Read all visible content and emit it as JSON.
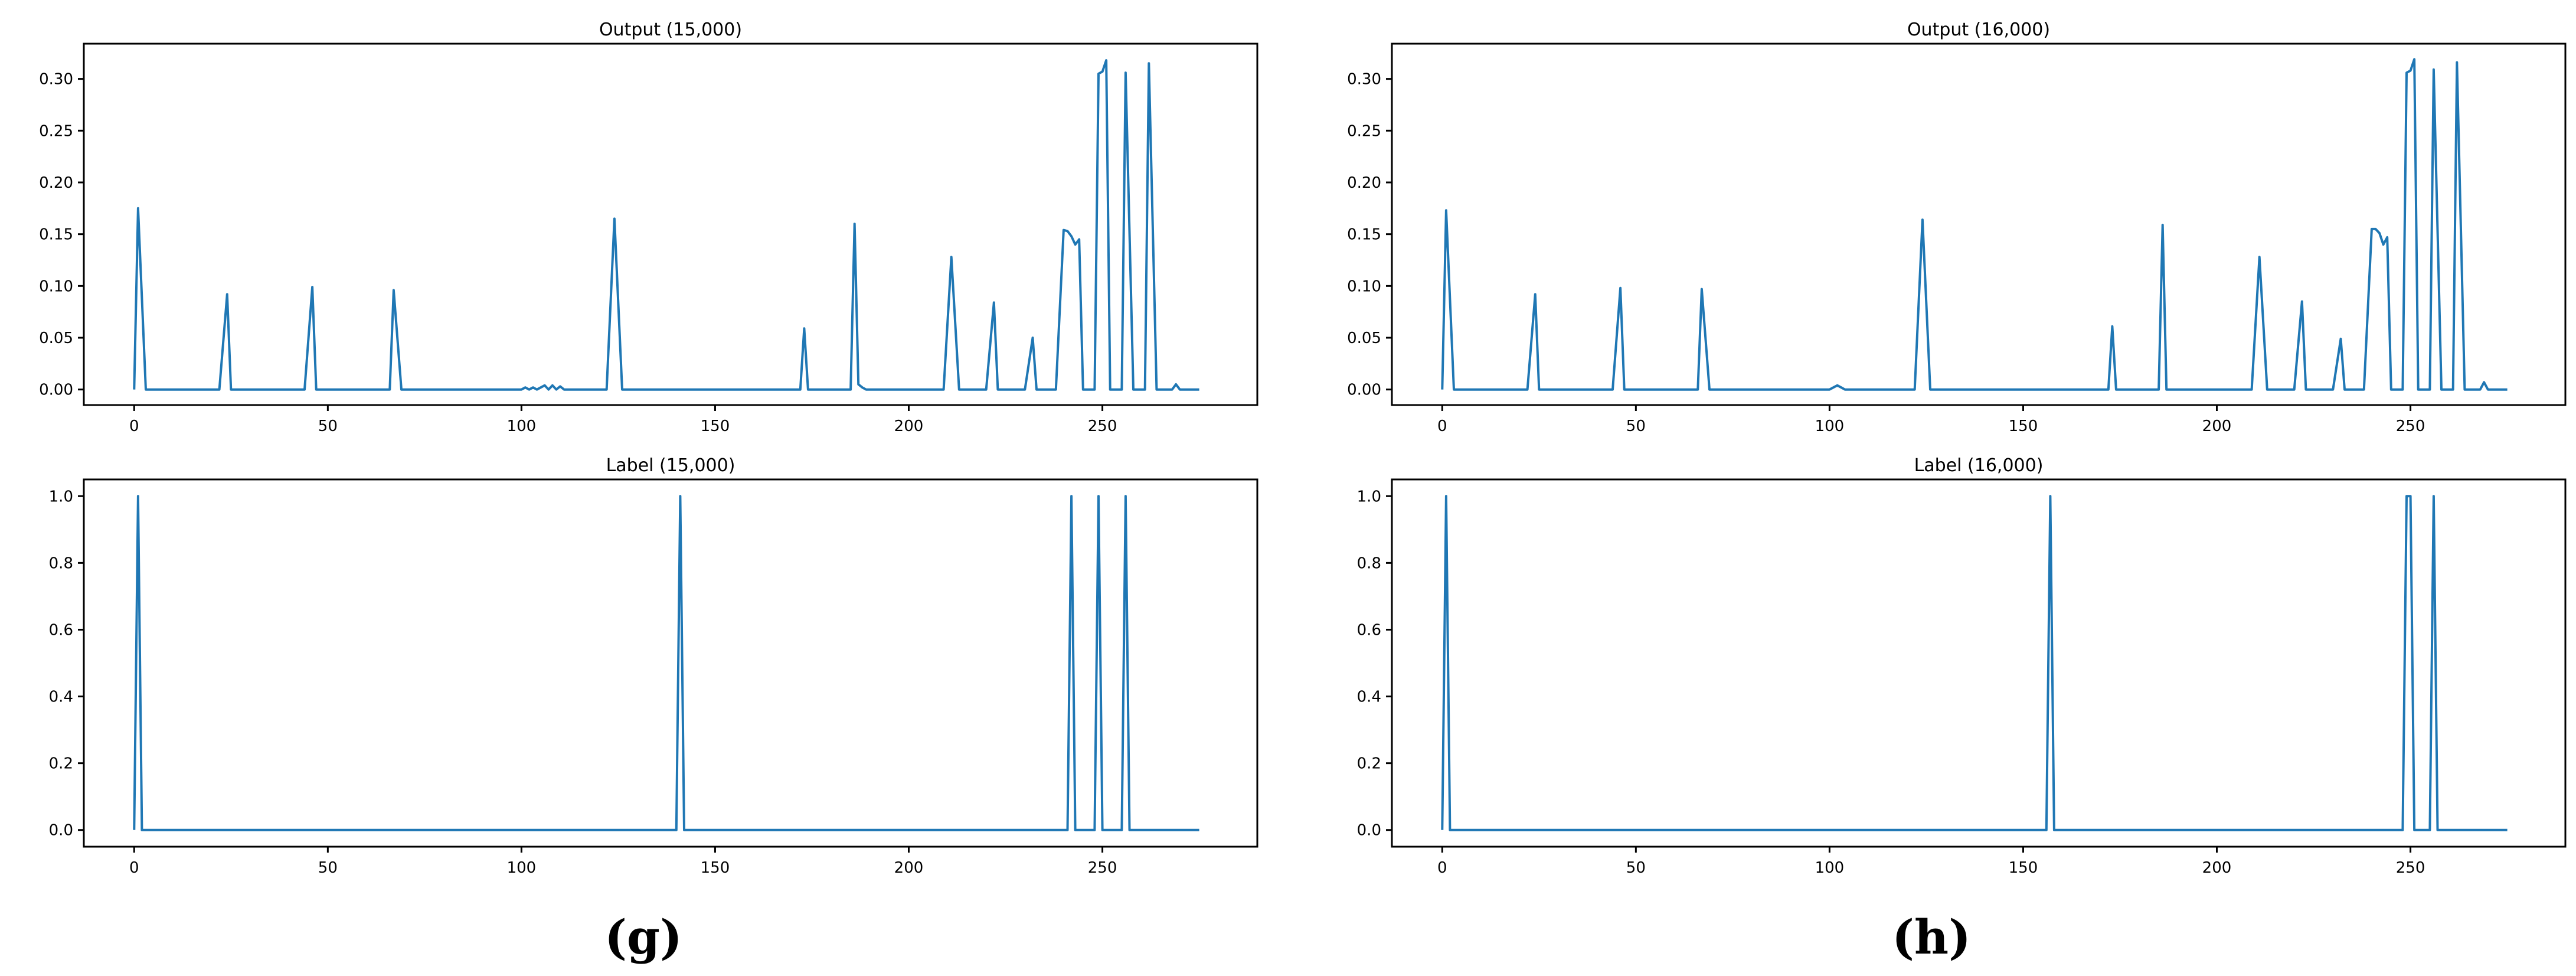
{
  "colors": {
    "series": "#1f77b4",
    "axis": "#000000",
    "background": "#ffffff"
  },
  "captions": {
    "left": "(g)",
    "right": "(h)"
  },
  "chart_data": [
    {
      "id": "output-15000",
      "type": "line",
      "title": "Output (15,000)",
      "xlabel": "",
      "ylabel": "",
      "xlim": [
        -13,
        290
      ],
      "ylim": [
        -0.015,
        0.334
      ],
      "xticks": [
        0,
        50,
        100,
        150,
        200,
        250
      ],
      "yticks": [
        0.0,
        0.05,
        0.1,
        0.15,
        0.2,
        0.25,
        0.3
      ],
      "ytick_labels": [
        "0.00",
        "0.05",
        "0.10",
        "0.15",
        "0.20",
        "0.25",
        "0.30"
      ],
      "grid": false,
      "series": [
        {
          "x": [
            0,
            1,
            3,
            22,
            24,
            25,
            44,
            46,
            47,
            66,
            67,
            69,
            100,
            101,
            102,
            103,
            104,
            105,
            106,
            107,
            108,
            109,
            110,
            111,
            112,
            122,
            124,
            126,
            172,
            173,
            174,
            185,
            186,
            187,
            188,
            189,
            190,
            209,
            211,
            213,
            220,
            222,
            223,
            230,
            232,
            233,
            238,
            240,
            241,
            242,
            243,
            244,
            245,
            246,
            248,
            249,
            250,
            251,
            252,
            254,
            255,
            256,
            258,
            260,
            261,
            262,
            264,
            266,
            268,
            269,
            270,
            271,
            272,
            273,
            274,
            275
          ],
          "y": [
            0.0,
            0.175,
            0.0,
            0.0,
            0.092,
            0.0,
            0.0,
            0.099,
            0.0,
            0.0,
            0.096,
            0.0,
            0.0,
            0.002,
            0.0,
            0.002,
            0.0,
            0.002,
            0.004,
            0.0,
            0.004,
            0.0,
            0.003,
            0.0,
            0.0,
            0.0,
            0.165,
            0.0,
            0.0,
            0.059,
            0.0,
            0.0,
            0.16,
            0.005,
            0.002,
            0.0,
            0.0,
            0.0,
            0.128,
            0.0,
            0.0,
            0.084,
            0.0,
            0.0,
            0.05,
            0.0,
            0.0,
            0.154,
            0.153,
            0.148,
            0.14,
            0.145,
            0.0,
            0.0,
            0.0,
            0.305,
            0.307,
            0.318,
            0.0,
            0.0,
            0.0,
            0.306,
            0.0,
            0.0,
            0.0,
            0.315,
            0.0,
            0.0,
            0.0,
            0.005,
            0.0,
            0.0,
            0.0,
            0.0,
            0.0,
            0.0
          ]
        }
      ]
    },
    {
      "id": "output-16000",
      "type": "line",
      "title": "Output (16,000)",
      "xlabel": "",
      "ylabel": "",
      "xlim": [
        -13,
        290
      ],
      "ylim": [
        -0.015,
        0.334
      ],
      "xticks": [
        0,
        50,
        100,
        150,
        200,
        250
      ],
      "yticks": [
        0.0,
        0.05,
        0.1,
        0.15,
        0.2,
        0.25,
        0.3
      ],
      "ytick_labels": [
        "0.00",
        "0.05",
        "0.10",
        "0.15",
        "0.20",
        "0.25",
        "0.30"
      ],
      "grid": false,
      "series": [
        {
          "x": [
            0,
            1,
            3,
            22,
            24,
            25,
            44,
            46,
            47,
            66,
            67,
            69,
            100,
            101,
            102,
            103,
            104,
            122,
            124,
            126,
            172,
            173,
            174,
            185,
            186,
            187,
            209,
            211,
            213,
            220,
            222,
            223,
            230,
            232,
            233,
            238,
            240,
            241,
            242,
            243,
            244,
            245,
            246,
            248,
            249,
            250,
            251,
            252,
            254,
            255,
            256,
            258,
            260,
            261,
            262,
            264,
            266,
            268,
            269,
            270,
            271,
            273,
            275
          ],
          "y": [
            0.0,
            0.173,
            0.0,
            0.0,
            0.092,
            0.0,
            0.0,
            0.098,
            0.0,
            0.0,
            0.097,
            0.0,
            0.0,
            0.002,
            0.004,
            0.002,
            0.0,
            0.0,
            0.164,
            0.0,
            0.0,
            0.061,
            0.0,
            0.0,
            0.159,
            0.0,
            0.0,
            0.128,
            0.0,
            0.0,
            0.085,
            0.0,
            0.0,
            0.049,
            0.0,
            0.0,
            0.155,
            0.155,
            0.151,
            0.14,
            0.147,
            0.0,
            0.0,
            0.0,
            0.306,
            0.308,
            0.319,
            0.0,
            0.0,
            0.0,
            0.309,
            0.0,
            0.0,
            0.0,
            0.316,
            0.0,
            0.0,
            0.0,
            0.007,
            0.0,
            0.0,
            0.0,
            0.0
          ]
        }
      ]
    },
    {
      "id": "label-15000",
      "type": "line",
      "title": "Label (15,000)",
      "xlabel": "",
      "ylabel": "",
      "xlim": [
        -13,
        290
      ],
      "ylim": [
        -0.05,
        1.05
      ],
      "xticks": [
        0,
        50,
        100,
        150,
        200,
        250
      ],
      "yticks": [
        0.0,
        0.2,
        0.4,
        0.6,
        0.8,
        1.0
      ],
      "ytick_labels": [
        "0.0",
        "0.2",
        "0.4",
        "0.6",
        "0.8",
        "1.0"
      ],
      "grid": false,
      "series": [
        {
          "x": [
            0,
            1,
            2,
            140,
            141,
            142,
            241,
            242,
            243,
            248,
            249,
            250,
            255,
            256,
            257,
            275
          ],
          "y": [
            0,
            1,
            0,
            0,
            1,
            0,
            0,
            1,
            0,
            0,
            1,
            0,
            0,
            1,
            0,
            0
          ]
        }
      ]
    },
    {
      "id": "label-16000",
      "type": "line",
      "title": "Label (16,000)",
      "xlabel": "",
      "ylabel": "",
      "xlim": [
        -13,
        290
      ],
      "ylim": [
        -0.05,
        1.05
      ],
      "xticks": [
        0,
        50,
        100,
        150,
        200,
        250
      ],
      "yticks": [
        0.0,
        0.2,
        0.4,
        0.6,
        0.8,
        1.0
      ],
      "ytick_labels": [
        "0.0",
        "0.2",
        "0.4",
        "0.6",
        "0.8",
        "1.0"
      ],
      "grid": false,
      "series": [
        {
          "x": [
            0,
            1,
            2,
            156,
            157,
            158,
            248,
            249,
            250,
            251,
            255,
            256,
            257,
            275
          ],
          "y": [
            0,
            1,
            0,
            0,
            1,
            0,
            0,
            1,
            1,
            0,
            0,
            1,
            0,
            0
          ]
        }
      ]
    }
  ]
}
